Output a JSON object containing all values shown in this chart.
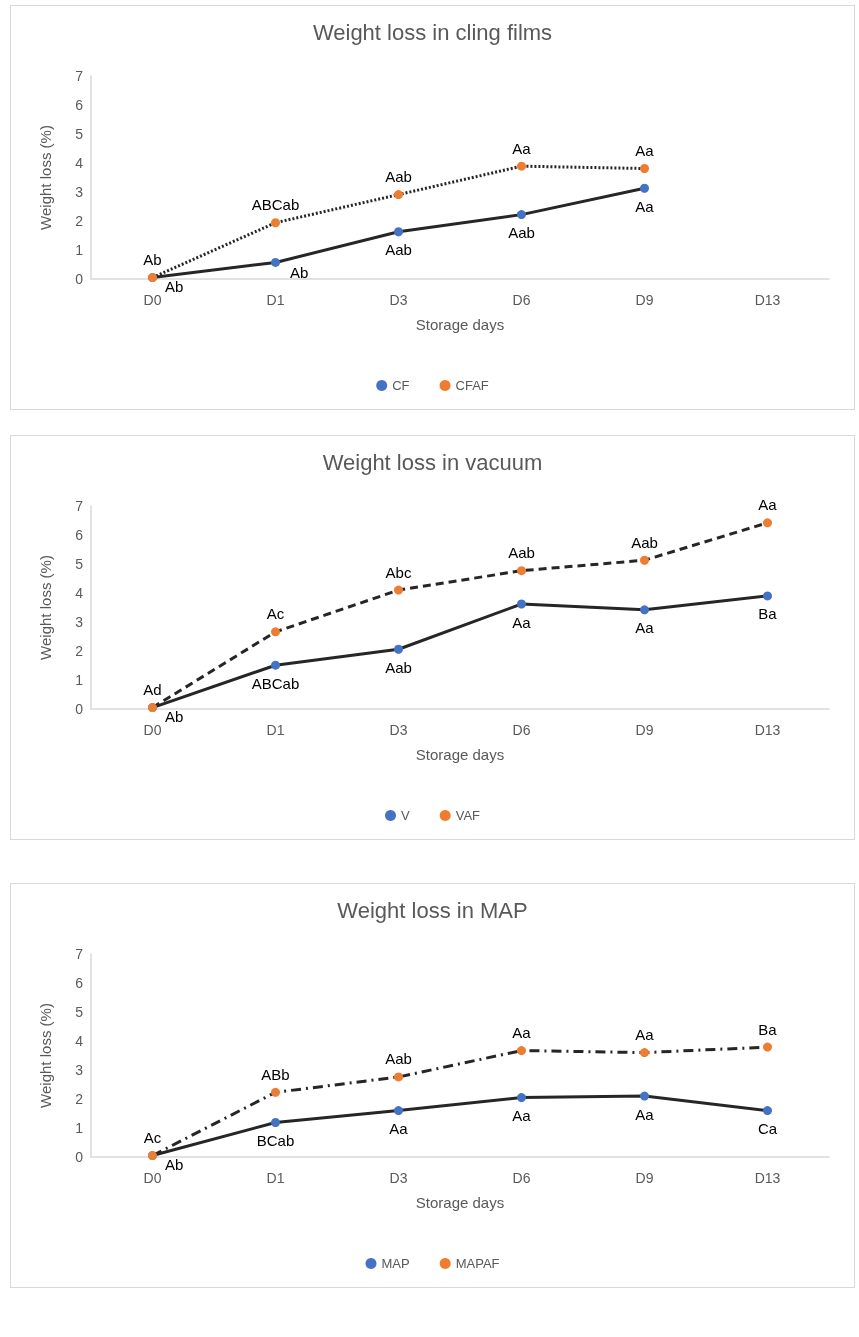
{
  "chart_data": [
    {
      "type": "line",
      "title": "Weight loss in cling films",
      "xlabel": "Storage days",
      "ylabel": "Weight loss (%)",
      "categories": [
        "D0",
        "D1",
        "D3",
        "D6",
        "D9",
        "D13"
      ],
      "ylim": [
        0,
        7
      ],
      "yticks": [
        0,
        1,
        2,
        3,
        4,
        5,
        6,
        7
      ],
      "grid": false,
      "legend": "bottom",
      "marker": "circle",
      "series": [
        {
          "name": "CF",
          "color": "#4472c4",
          "line_style": "solid",
          "values": [
            0.05,
            0.57,
            1.63,
            2.22,
            3.13,
            null
          ],
          "value_labels": [
            "Ab",
            "Ab",
            "Aab",
            "Aab",
            "Aa",
            null
          ]
        },
        {
          "name": "CFAF",
          "color": "#ed7d31",
          "line_style": "dotted",
          "values": [
            0.05,
            1.94,
            2.91,
            3.89,
            3.81,
            null
          ],
          "value_labels": [
            "Ab",
            "ABCab",
            "Aab",
            "Aa",
            "Aa",
            null
          ]
        }
      ]
    },
    {
      "type": "line",
      "title": "Weight loss in vacuum",
      "xlabel": "Storage days",
      "ylabel": "Weight loss (%)",
      "categories": [
        "D0",
        "D1",
        "D3",
        "D6",
        "D9",
        "D13"
      ],
      "ylim": [
        0,
        7
      ],
      "yticks": [
        0,
        1,
        2,
        3,
        4,
        5,
        6,
        7
      ],
      "grid": false,
      "legend": "bottom",
      "marker": "circle",
      "series": [
        {
          "name": "V",
          "color": "#4472c4",
          "line_style": "solid",
          "values": [
            0.05,
            1.51,
            2.06,
            3.62,
            3.42,
            3.9
          ],
          "value_labels": [
            "Ab",
            "ABCab",
            "Aab",
            "Aa",
            "Aa",
            "Ba"
          ]
        },
        {
          "name": "VAF",
          "color": "#ed7d31",
          "line_style": "dashed",
          "values": [
            0.05,
            2.66,
            4.1,
            4.77,
            5.13,
            6.42
          ],
          "value_labels": [
            "Ad",
            "Ac",
            "Abc",
            "Aab",
            "Aab",
            "Aa"
          ]
        }
      ]
    },
    {
      "type": "line",
      "title": "Weight loss in MAP",
      "xlabel": "Storage days",
      "ylabel": "Weight loss (%)",
      "categories": [
        "D0",
        "D1",
        "D3",
        "D6",
        "D9",
        "D13"
      ],
      "ylim": [
        0,
        7
      ],
      "yticks": [
        0,
        1,
        2,
        3,
        4,
        5,
        6,
        7
      ],
      "grid": false,
      "legend": "bottom",
      "marker": "circle",
      "series": [
        {
          "name": "MAP",
          "color": "#4472c4",
          "line_style": "solid",
          "values": [
            0.05,
            1.19,
            1.6,
            2.05,
            2.1,
            1.6
          ],
          "value_labels": [
            "Ab",
            "BCab",
            "Aa",
            "Aa",
            "Aa",
            "Ca"
          ]
        },
        {
          "name": "MAPAF",
          "color": "#ed7d31",
          "line_style": "dashdot",
          "values": [
            0.05,
            2.23,
            2.76,
            3.67,
            3.6,
            3.79
          ],
          "value_labels": [
            "Ac",
            "ABb",
            "Aab",
            "Aa",
            "Aa",
            "Ba"
          ]
        }
      ]
    }
  ]
}
